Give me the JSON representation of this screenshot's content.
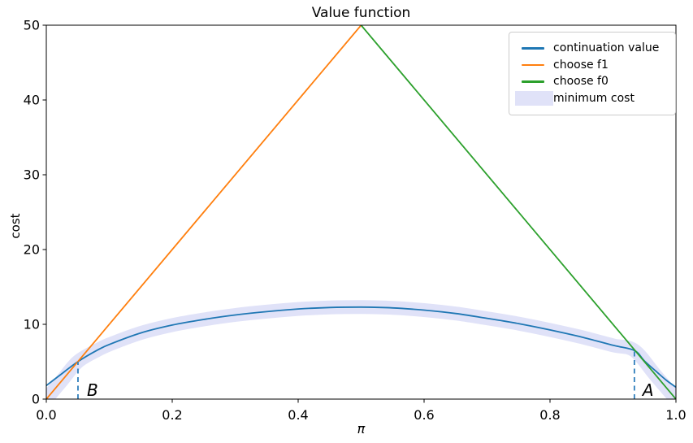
{
  "chart_data": {
    "type": "line",
    "title": "Value function",
    "xlabel": "π",
    "ylabel": "cost",
    "xlim": [
      0.0,
      1.0
    ],
    "ylim": [
      0,
      50
    ],
    "grid": false,
    "legend_position": "upper right",
    "xticks": {
      "values": [
        0.0,
        0.2,
        0.4,
        0.6,
        0.8,
        1.0
      ],
      "labels": [
        "0.0",
        "0.2",
        "0.4",
        "0.6",
        "0.8",
        "1.0"
      ]
    },
    "yticks": {
      "values": [
        0,
        10,
        20,
        30,
        40,
        50
      ],
      "labels": [
        "0",
        "10",
        "20",
        "30",
        "40",
        "50"
      ]
    },
    "series": [
      {
        "name": "continuation value",
        "color": "#1f77b4",
        "style": "line",
        "points": [
          [
            0,
            1.8
          ],
          [
            0.02,
            3.1
          ],
          [
            0.05,
            5.0
          ],
          [
            0.08,
            6.5
          ],
          [
            0.1,
            7.3
          ],
          [
            0.15,
            8.85
          ],
          [
            0.2,
            9.9
          ],
          [
            0.25,
            10.65
          ],
          [
            0.3,
            11.25
          ],
          [
            0.35,
            11.7
          ],
          [
            0.4,
            12.05
          ],
          [
            0.45,
            12.25
          ],
          [
            0.5,
            12.3
          ],
          [
            0.55,
            12.2
          ],
          [
            0.6,
            11.9
          ],
          [
            0.65,
            11.45
          ],
          [
            0.7,
            10.8
          ],
          [
            0.75,
            10.1
          ],
          [
            0.8,
            9.25
          ],
          [
            0.85,
            8.3
          ],
          [
            0.9,
            7.2
          ],
          [
            0.934,
            6.5
          ],
          [
            0.95,
            5.1
          ],
          [
            0.97,
            3.6
          ],
          [
            0.985,
            2.5
          ],
          [
            1,
            1.6
          ]
        ]
      },
      {
        "name": "choose f1",
        "color": "#ff7f0e",
        "style": "line",
        "points": [
          [
            0,
            0
          ],
          [
            0.5,
            50
          ]
        ]
      },
      {
        "name": "choose f0",
        "color": "#2ca02c",
        "style": "line",
        "points": [
          [
            0.5,
            50
          ],
          [
            1,
            0
          ]
        ]
      },
      {
        "name": "minimum cost",
        "color": "#e0e2f8",
        "style": "band",
        "points": [
          [
            0,
            0
          ],
          [
            0.025,
            2.5
          ],
          [
            0.05,
            5.0
          ],
          [
            0.08,
            6.5
          ],
          [
            0.1,
            7.3
          ],
          [
            0.15,
            8.85
          ],
          [
            0.2,
            9.9
          ],
          [
            0.25,
            10.65
          ],
          [
            0.3,
            11.25
          ],
          [
            0.35,
            11.7
          ],
          [
            0.4,
            12.05
          ],
          [
            0.45,
            12.25
          ],
          [
            0.5,
            12.3
          ],
          [
            0.55,
            12.2
          ],
          [
            0.6,
            11.9
          ],
          [
            0.65,
            11.45
          ],
          [
            0.7,
            10.8
          ],
          [
            0.75,
            10.1
          ],
          [
            0.8,
            9.25
          ],
          [
            0.85,
            8.3
          ],
          [
            0.9,
            7.2
          ],
          [
            0.934,
            6.5
          ],
          [
            0.967,
            3.25
          ],
          [
            1,
            0
          ]
        ]
      }
    ],
    "annotations": [
      {
        "label": "B",
        "line_x": 0.0503,
        "line_top": 5.0,
        "label_x": 0.0645,
        "label_y": 0.45
      },
      {
        "label": "A",
        "line_x": 0.934,
        "line_top": 6.5,
        "label_x": 0.947,
        "label_y": 0.45
      }
    ],
    "annotation_line_color": "#2e7ebc",
    "axis_color": "#000000"
  }
}
